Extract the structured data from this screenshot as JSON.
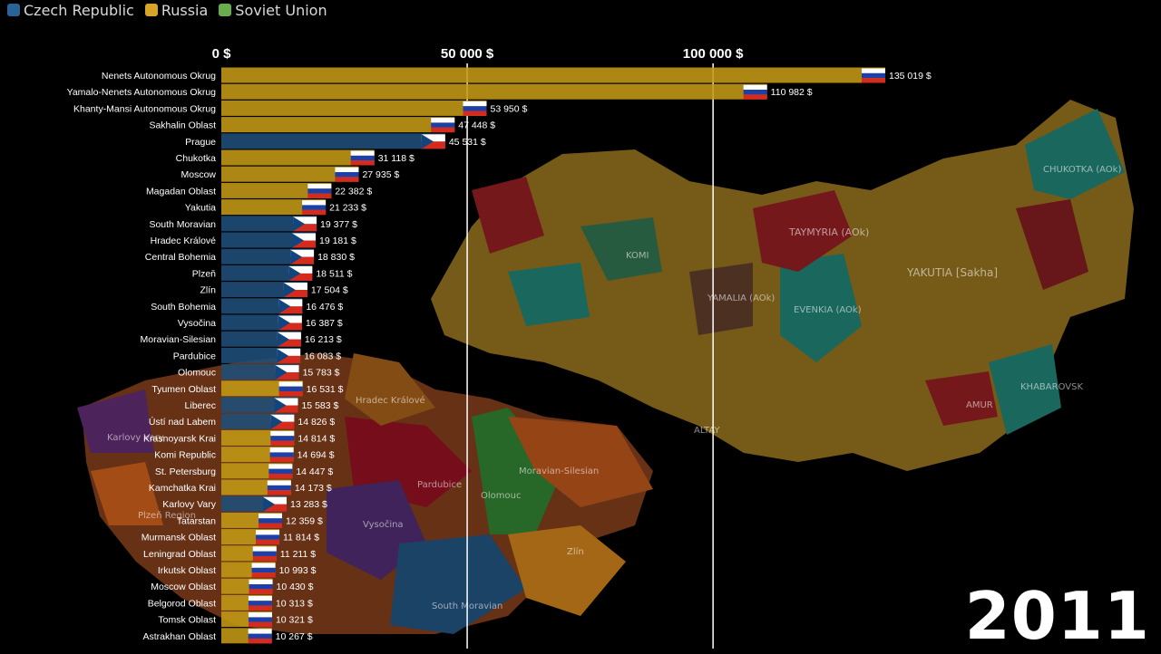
{
  "colors": {
    "czech": "#1f4e79",
    "russia": "#c49a16",
    "soviet": "#5fae4a",
    "axis_text": "#ffffff",
    "label_text": "#ffffff",
    "gridline": "#ffffff"
  },
  "legend": [
    {
      "label": "Czech Republic",
      "color": "#2a6496"
    },
    {
      "label": "Russia",
      "color": "#d8a52a"
    },
    {
      "label": "Soviet Union",
      "color": "#6aad4f"
    }
  ],
  "year": "2011",
  "map_labels": [
    "TAYMYRIA (AOk)",
    "YAKUTIA [Sakha]",
    "EVENKIA (AOk)",
    "CHUKOTKA (AOk)",
    "KOMI",
    "YAMALIA (AOk)",
    "AMUR",
    "KHABAROVSK",
    "ALTAY",
    "Moravian-Silesian",
    "Olomouc",
    "Pardubice",
    "Hradec Králové",
    "Vysočina",
    "South Moravian",
    "Zlín",
    "Plzeň Region",
    "Karlovy Vary"
  ],
  "chart_data": {
    "type": "bar",
    "orientation": "horizontal",
    "value_suffix": " $",
    "xlim": [
      0,
      135019
    ],
    "xticks": [
      {
        "value": 0,
        "label": "0 $"
      },
      {
        "value": 50000,
        "label": "50 000 $"
      },
      {
        "value": 100000,
        "label": "100 000 $"
      }
    ],
    "bars": [
      {
        "name": "Nenets Autonomous Okrug",
        "value": 135019,
        "label": "135 019 $",
        "country": "russia"
      },
      {
        "name": "Yamalo-Nenets Autonomous Okrug",
        "value": 110982,
        "label": "110 982 $",
        "country": "russia"
      },
      {
        "name": "Khanty-Mansi Autonomous Okrug",
        "value": 53950,
        "label": "53 950 $",
        "country": "russia"
      },
      {
        "name": "Sakhalin Oblast",
        "value": 47448,
        "label": "47 448 $",
        "country": "russia"
      },
      {
        "name": "Prague",
        "value": 45531,
        "label": "45 531 $",
        "country": "czech"
      },
      {
        "name": "Chukotka",
        "value": 31118,
        "label": "31 118 $",
        "country": "russia"
      },
      {
        "name": "Moscow",
        "value": 27935,
        "label": "27 935 $",
        "country": "russia"
      },
      {
        "name": "Magadan Oblast",
        "value": 22382,
        "label": "22 382 $",
        "country": "russia"
      },
      {
        "name": "Yakutia",
        "value": 21233,
        "label": "21 233 $",
        "country": "russia"
      },
      {
        "name": "South Moravian",
        "value": 19377,
        "label": "19 377 $",
        "country": "czech"
      },
      {
        "name": "Hradec Králové",
        "value": 19181,
        "label": "19 181 $",
        "country": "czech"
      },
      {
        "name": "Central Bohemia",
        "value": 18830,
        "label": "18 830 $",
        "country": "czech"
      },
      {
        "name": "Plzeň",
        "value": 18511,
        "label": "18 511 $",
        "country": "czech"
      },
      {
        "name": "Zlín",
        "value": 17504,
        "label": "17 504 $",
        "country": "czech"
      },
      {
        "name": "South Bohemia",
        "value": 16476,
        "label": "16 476 $",
        "country": "czech"
      },
      {
        "name": "Vysočina",
        "value": 16387,
        "label": "16 387 $",
        "country": "czech"
      },
      {
        "name": "Moravian-Silesian",
        "value": 16213,
        "label": "16 213 $",
        "country": "czech"
      },
      {
        "name": "Pardubice",
        "value": 16083,
        "label": "16 083 $",
        "country": "czech"
      },
      {
        "name": "Olomouc",
        "value": 15783,
        "label": "15 783 $",
        "country": "czech"
      },
      {
        "name": "Tyumen Oblast",
        "value": 16531,
        "label": "16 531 $",
        "country": "russia"
      },
      {
        "name": "Liberec",
        "value": 15583,
        "label": "15 583 $",
        "country": "czech"
      },
      {
        "name": "Ústí nad Labem",
        "value": 14826,
        "label": "14 826 $",
        "country": "czech"
      },
      {
        "name": "Krasnoyarsk Krai",
        "value": 14814,
        "label": "14 814 $",
        "country": "russia"
      },
      {
        "name": "Komi Republic",
        "value": 14694,
        "label": "14 694 $",
        "country": "russia"
      },
      {
        "name": "St. Petersburg",
        "value": 14447,
        "label": "14 447 $",
        "country": "russia"
      },
      {
        "name": "Kamchatka Krai",
        "value": 14173,
        "label": "14 173 $",
        "country": "russia"
      },
      {
        "name": "Karlovy Vary",
        "value": 13283,
        "label": "13 283 $",
        "country": "czech"
      },
      {
        "name": "Tatarstan",
        "value": 12359,
        "label": "12 359 $",
        "country": "russia"
      },
      {
        "name": "Murmansk Oblast",
        "value": 11814,
        "label": "11 814 $",
        "country": "russia"
      },
      {
        "name": "Leningrad Oblast",
        "value": 11211,
        "label": "11 211 $",
        "country": "russia"
      },
      {
        "name": "Irkutsk Oblast",
        "value": 10993,
        "label": "10 993 $",
        "country": "russia"
      },
      {
        "name": "Moscow Oblast",
        "value": 10430,
        "label": "10 430 $",
        "country": "russia"
      },
      {
        "name": "Belgorod Oblast",
        "value": 10313,
        "label": "10 313 $",
        "country": "russia"
      },
      {
        "name": "Tomsk Oblast",
        "value": 10321,
        "label": "10 321 $",
        "country": "russia"
      },
      {
        "name": "Astrakhan Oblast",
        "value": 10267,
        "label": "10 267 $",
        "country": "russia"
      }
    ]
  }
}
